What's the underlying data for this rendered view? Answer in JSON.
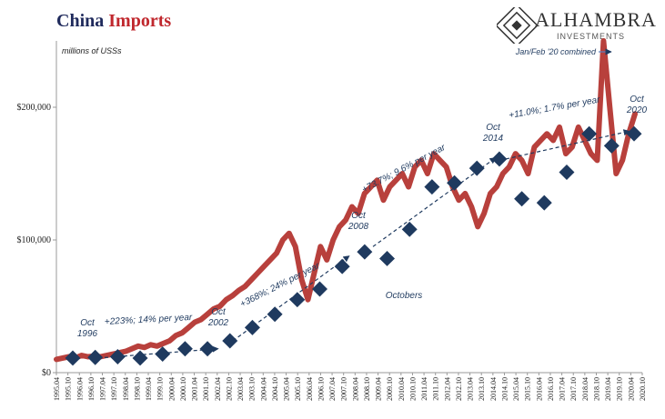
{
  "title": {
    "part1": "China",
    "part2": "Imports"
  },
  "logo": {
    "name": "ALHAMBRA",
    "sub": "INVESTMENTS"
  },
  "colors": {
    "line": "#b8403c",
    "diamond": "#1f3a5f",
    "annotation": "#1f3a5f",
    "title_blue": "#1f2a5c",
    "title_red": "#c0272d"
  },
  "chart_data": {
    "type": "line",
    "title": "China Imports",
    "ylabel": "millions of USSs",
    "ylim": [
      0,
      250000
    ],
    "yticks": [
      0,
      100000,
      200000
    ],
    "yticklabels": [
      "$0",
      "$100,000",
      "$200,000"
    ],
    "xticks": [
      "1995.04",
      "1995.10",
      "1996.04",
      "1996.10",
      "1997.04",
      "1997.10",
      "1998.04",
      "1998.10",
      "1999.04",
      "1999.10",
      "2000.04",
      "2000.10",
      "2001.04",
      "2001.10",
      "2002.04",
      "2002.10",
      "2003.04",
      "2003.10",
      "2004.04",
      "2004.10",
      "2005.04",
      "2005.10",
      "2006.04",
      "2006.10",
      "2007.04",
      "2007.10",
      "2008.04",
      "2008.10",
      "2009.04",
      "2009.10",
      "2010.04",
      "2010.10",
      "2011.04",
      "2011.10",
      "2012.04",
      "2012.10",
      "2013.04",
      "2013.10",
      "2014.04",
      "2014.10",
      "2015.04",
      "2015.10",
      "2016.04",
      "2016.10",
      "2017.04",
      "2017.10",
      "2018.04",
      "2018.10",
      "2019.04",
      "2019.10",
      "2020.04",
      "2020.10"
    ],
    "series": [
      {
        "values": [
          10000,
          11000,
          12000,
          11000,
          13000,
          12000,
          12500,
          12000,
          13000,
          14000,
          15000,
          16000,
          18000,
          20000,
          19000,
          21000,
          20000,
          22000,
          24000,
          28000,
          30000,
          34000,
          38000,
          40000,
          44000,
          48000,
          50000,
          55000,
          58000,
          62000,
          65000,
          70000,
          75000,
          80000,
          85000,
          90000,
          100000,
          105000,
          95000,
          70000,
          55000,
          75000,
          95000,
          85000,
          100000,
          110000,
          115000,
          125000,
          120000,
          135000,
          140000,
          145000,
          130000,
          140000,
          145000,
          150000,
          140000,
          155000,
          160000,
          150000,
          165000,
          160000,
          155000,
          140000,
          130000,
          135000,
          125000,
          110000,
          120000,
          135000,
          140000,
          150000,
          155000,
          165000,
          160000,
          150000,
          170000,
          175000,
          180000,
          175000,
          185000,
          165000,
          170000,
          185000,
          175000,
          165000,
          160000,
          250000,
          200000,
          150000,
          160000,
          180000,
          195000
        ]
      },
      {
        "values": [
          11000,
          11500,
          12000,
          11000,
          14000,
          18000,
          18000,
          24000,
          34000,
          44000,
          55000,
          63000,
          80000,
          91000,
          86000,
          108000,
          140000,
          143000,
          154000,
          161000,
          131000,
          128000,
          151000,
          180000,
          171000,
          180000
        ]
      }
    ]
  },
  "annotations": {
    "oct1996": "Oct\n1996",
    "seg1": "+223%; 14% per year",
    "oct2002": "Oct\n2002",
    "seg2": "+368%; 24% per year",
    "oct2008": "Oct\n2008",
    "seg3": "+73.7%; 9.6% per year",
    "oct2014": "Oct\n2014",
    "seg4": "+11.0%; 1.7% per year",
    "oct2020": "Oct\n2020",
    "octobers": "Octobers",
    "janfeb": "Jan/Feb '20 combined"
  }
}
